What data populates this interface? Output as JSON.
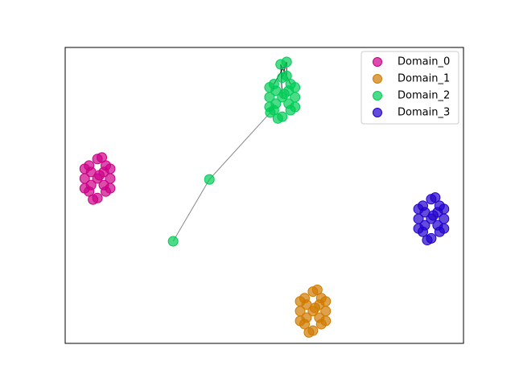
{
  "chart_data": {
    "type": "scatter",
    "xlim": [
      0,
      100
    ],
    "ylim": [
      0,
      100
    ],
    "legend": "upper right",
    "series": [
      {
        "name": "Domain_0",
        "color": "#cc0088",
        "x": [
          8.1,
          10.2,
          6.0,
          10.2,
          6.0,
          11.3,
          4.9,
          8.1,
          8.1,
          9.7,
          6.5,
          9.7,
          6.5,
          11.3,
          4.9,
          11.3,
          4.9,
          9.2,
          7.0,
          8.6
        ],
        "values": [
          55.7,
          60.1,
          60.1,
          51.3,
          51.3,
          55.7,
          55.7,
          62.3,
          49.1,
          57.9,
          53.5,
          53.5,
          57.9,
          59.0,
          52.4,
          52.4,
          59.0,
          62.8,
          48.6,
          56.8
        ]
      },
      {
        "name": "Domain_1",
        "color": "#d07a00",
        "x": [
          62.2,
          64.3,
          60.1,
          64.3,
          60.1,
          65.4,
          59.0,
          62.2,
          62.2,
          63.8,
          60.6,
          63.8,
          60.6,
          65.4,
          59.0,
          65.4,
          59.0,
          63.3,
          61.2,
          62.7
        ],
        "values": [
          10.9,
          15.3,
          15.3,
          6.5,
          6.5,
          10.9,
          10.9,
          17.5,
          4.3,
          13.1,
          8.7,
          8.7,
          13.1,
          14.2,
          7.6,
          7.6,
          14.2,
          18.1,
          3.7,
          12.0
        ]
      },
      {
        "name": "Domain_2",
        "color": "#00cc55",
        "x": [
          54.5,
          56.6,
          52.4,
          56.6,
          52.4,
          57.7,
          51.3,
          54.5,
          54.5,
          56.1,
          52.9,
          56.1,
          52.9,
          57.7,
          51.3,
          57.7,
          51.3,
          55.6,
          53.4,
          55.0,
          54.1,
          55.6,
          51.5,
          36.2,
          27.1
        ],
        "values": [
          83.2,
          87.6,
          87.6,
          78.8,
          78.8,
          83.2,
          83.2,
          89.8,
          76.6,
          85.4,
          81.0,
          81.0,
          85.4,
          86.5,
          79.9,
          79.9,
          86.5,
          90.4,
          76.0,
          84.3,
          94.3,
          95.1,
          78.0,
          55.4,
          34.5
        ],
        "edges": [
          [
            24,
            23
          ],
          [
            23,
            22
          ],
          [
            20,
            7
          ],
          [
            21,
            7
          ],
          [
            20,
            0
          ],
          [
            21,
            17
          ],
          [
            20,
            1
          ],
          [
            21,
            2
          ]
        ]
      },
      {
        "name": "Domain_3",
        "color": "#2200cc",
        "x": [
          91.9,
          94.0,
          89.8,
          94.0,
          89.8,
          95.1,
          88.7,
          91.9,
          91.9,
          93.5,
          90.3,
          93.5,
          90.3,
          95.1,
          88.7,
          95.1,
          88.7,
          92.9,
          90.9,
          92.4
        ],
        "values": [
          42.1,
          46.5,
          46.5,
          37.7,
          37.7,
          42.1,
          42.1,
          48.7,
          35.5,
          44.3,
          39.9,
          39.9,
          44.3,
          45.4,
          38.8,
          38.8,
          45.4,
          49.3,
          34.9,
          43.2
        ]
      }
    ]
  }
}
